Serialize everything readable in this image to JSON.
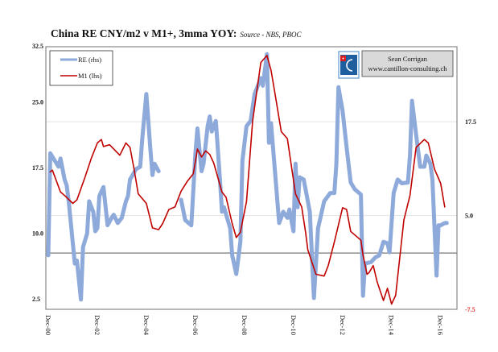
{
  "chart_data": {
    "type": "line",
    "title": "China RE CNY/m2 v M1+, 3mma YOY:",
    "subtitle": "Source - NBS, PBOC",
    "xlabel": "",
    "x_ticks": [
      "Dec-00",
      "Dec-02",
      "Dec-04",
      "Dec-06",
      "Dec-08",
      "Dec-10",
      "Dec-12",
      "Dec-14",
      "Dec-16"
    ],
    "y_left": {
      "ticks": [
        "32.5",
        "25.0",
        "17.5",
        "10.0",
        "2.5"
      ],
      "range": [
        2.5,
        32.5
      ]
    },
    "y_right": {
      "ticks": [
        "17.5",
        "5.0",
        "-7.5"
      ],
      "range": [
        -7.5,
        27.5
      ],
      "zero_line": true
    },
    "grid": "horizontal, right axis",
    "legend": {
      "placement": "top-left",
      "entries": [
        "RE (rhs)",
        "M1 (lhs)"
      ]
    },
    "annotation": {
      "name": "Sean Corrigan",
      "site": "www.cantillon-consulting.ch"
    },
    "series": [
      {
        "name": "RE (rhs)",
        "axis": "right",
        "color": "#8eaadb",
        "points": [
          [
            "2000-12",
            -0.3
          ],
          [
            "2001-01",
            13.3
          ],
          [
            "2001-05",
            11.5
          ],
          [
            "2001-06",
            12.6
          ],
          [
            "2001-08",
            9.8
          ],
          [
            "2001-09",
            9.0
          ],
          [
            "2001-10",
            6.9
          ],
          [
            "2002-01",
            -1.4
          ],
          [
            "2002-02",
            -1.0
          ],
          [
            "2002-04",
            -6.2
          ],
          [
            "2002-05",
            0.8
          ],
          [
            "2002-07",
            2.6
          ],
          [
            "2002-08",
            6.9
          ],
          [
            "2002-10",
            5.5
          ],
          [
            "2002-11",
            2.9
          ],
          [
            "2002-12",
            3.3
          ],
          [
            "2003-01",
            7.6
          ],
          [
            "2003-03",
            8.8
          ],
          [
            "2003-05",
            3.7
          ],
          [
            "2003-07",
            4.7
          ],
          [
            "2003-08",
            5.1
          ],
          [
            "2003-10",
            4.0
          ],
          [
            "2003-12",
            4.7
          ],
          [
            "2004-02",
            6.9
          ],
          [
            "2004-03",
            7.6
          ],
          [
            "2004-04",
            9.8
          ],
          [
            "2004-07",
            11.2
          ],
          [
            "2004-09",
            11.5
          ],
          [
            "2004-10",
            15.2
          ],
          [
            "2004-12",
            21.2
          ],
          [
            "2005-02",
            13.7
          ],
          [
            "2005-03",
            10.4
          ],
          [
            "2005-04",
            11.9
          ],
          [
            "2005-06",
            10.9
          ],
          [
            "2005-07",
            null
          ],
          [
            "2006-05",
            7.1
          ],
          [
            "2006-07",
            4.4
          ],
          [
            "2006-10",
            3.7
          ],
          [
            "2006-12",
            13.3
          ],
          [
            "2007-01",
            16.6
          ],
          [
            "2007-03",
            10.9
          ],
          [
            "2007-04",
            11.9
          ],
          [
            "2007-06",
            16.9
          ],
          [
            "2007-07",
            18.2
          ],
          [
            "2007-08",
            16.2
          ],
          [
            "2007-10",
            17.6
          ],
          [
            "2007-12",
            9.8
          ],
          [
            "2008-01",
            5.5
          ],
          [
            "2008-02",
            6.1
          ],
          [
            "2008-05",
            3.3
          ],
          [
            "2008-06",
            -0.3
          ],
          [
            "2008-08",
            -2.8
          ],
          [
            "2008-10",
            1.5
          ],
          [
            "2008-11",
            12.3
          ],
          [
            "2009-01",
            16.9
          ],
          [
            "2009-03",
            17.6
          ],
          [
            "2009-05",
            21.2
          ],
          [
            "2009-08",
            23.3
          ],
          [
            "2009-09",
            22.3
          ],
          [
            "2009-11",
            26.5
          ],
          [
            "2009-12",
            14.7
          ],
          [
            "2010-01",
            17.3
          ],
          [
            "2010-05",
            4.0
          ],
          [
            "2010-07",
            5.5
          ],
          [
            "2010-09",
            4.7
          ],
          [
            "2010-10",
            5.8
          ],
          [
            "2010-12",
            2.9
          ],
          [
            "2011-01",
            11.9
          ],
          [
            "2011-02",
            6.1
          ],
          [
            "2011-03",
            10.1
          ],
          [
            "2011-05",
            9.8
          ],
          [
            "2011-08",
            5.5
          ],
          [
            "2011-10",
            -6.0
          ],
          [
            "2011-12",
            3.3
          ],
          [
            "2012-03",
            6.9
          ],
          [
            "2012-06",
            8.0
          ],
          [
            "2012-08",
            8.0
          ],
          [
            "2012-09",
            11.9
          ],
          [
            "2012-10",
            22.1
          ],
          [
            "2012-12",
            19.0
          ],
          [
            "2013-02",
            14.1
          ],
          [
            "2013-04",
            9.4
          ],
          [
            "2013-06",
            8.5
          ],
          [
            "2013-09",
            7.8
          ],
          [
            "2013-10",
            -5.7
          ],
          [
            "2013-11",
            -1.4
          ],
          [
            "2014-02",
            -1.2
          ],
          [
            "2014-04",
            -0.6
          ],
          [
            "2014-06",
            -0.3
          ],
          [
            "2014-08",
            1.5
          ],
          [
            "2014-10",
            1.3
          ],
          [
            "2014-11",
            0.1
          ],
          [
            "2015-01",
            8.0
          ],
          [
            "2015-03",
            9.8
          ],
          [
            "2015-05",
            9.3
          ],
          [
            "2015-08",
            9.4
          ],
          [
            "2015-09",
            13.0
          ],
          [
            "2015-10",
            20.3
          ],
          [
            "2015-12",
            15.8
          ],
          [
            "2016-02",
            11.5
          ],
          [
            "2016-04",
            11.5
          ],
          [
            "2016-05",
            13.0
          ],
          [
            "2016-07",
            11.9
          ],
          [
            "2016-08",
            9.8
          ],
          [
            "2016-10",
            -3.0
          ],
          [
            "2016-11",
            3.7
          ],
          [
            "2016-12",
            3.7
          ],
          [
            "2017-02",
            4.0
          ],
          [
            "2017-03",
            4.0
          ]
        ]
      },
      {
        "name": "M1 (lhs)",
        "axis": "left",
        "color": "#c00000",
        "points": [
          [
            "2001-01",
            18.2
          ],
          [
            "2001-02",
            18.4
          ],
          [
            "2001-06",
            15.9
          ],
          [
            "2001-08",
            15.5
          ],
          [
            "2001-12",
            14.6
          ],
          [
            "2002-02",
            15.0
          ],
          [
            "2002-06",
            17.6
          ],
          [
            "2002-09",
            19.7
          ],
          [
            "2002-12",
            21.5
          ],
          [
            "2003-02",
            21.9
          ],
          [
            "2003-03",
            21.1
          ],
          [
            "2003-06",
            21.3
          ],
          [
            "2003-11",
            20.1
          ],
          [
            "2004-02",
            21.5
          ],
          [
            "2004-04",
            21.0
          ],
          [
            "2004-06",
            18.5
          ],
          [
            "2004-08",
            15.7
          ],
          [
            "2004-12",
            14.6
          ],
          [
            "2005-03",
            11.8
          ],
          [
            "2005-06",
            11.6
          ],
          [
            "2005-08",
            12.3
          ],
          [
            "2005-11",
            13.9
          ],
          [
            "2006-02",
            14.2
          ],
          [
            "2006-05",
            16.0
          ],
          [
            "2006-08",
            17.1
          ],
          [
            "2006-11",
            18.0
          ],
          [
            "2007-01",
            20.8
          ],
          [
            "2007-03",
            19.9
          ],
          [
            "2007-05",
            20.6
          ],
          [
            "2007-07",
            20.2
          ],
          [
            "2007-09",
            19.2
          ],
          [
            "2008-01",
            15.9
          ],
          [
            "2008-03",
            15.3
          ],
          [
            "2008-06",
            12.3
          ],
          [
            "2008-08",
            10.7
          ],
          [
            "2008-10",
            11.3
          ],
          [
            "2009-01",
            14.8
          ],
          [
            "2009-04",
            24.0
          ],
          [
            "2009-08",
            30.7
          ],
          [
            "2009-11",
            31.5
          ],
          [
            "2010-01",
            29.8
          ],
          [
            "2010-03",
            27.1
          ],
          [
            "2010-06",
            22.8
          ],
          [
            "2010-09",
            22.0
          ],
          [
            "2011-01",
            15.7
          ],
          [
            "2011-04",
            14.2
          ],
          [
            "2011-06",
            11.2
          ],
          [
            "2011-07",
            9.3
          ],
          [
            "2011-11",
            6.5
          ],
          [
            "2012-03",
            6.3
          ],
          [
            "2012-05",
            7.5
          ],
          [
            "2012-07",
            9.3
          ],
          [
            "2012-08",
            10.2
          ],
          [
            "2012-12",
            14.1
          ],
          [
            "2013-02",
            13.9
          ],
          [
            "2013-04",
            11.4
          ],
          [
            "2013-09",
            10.4
          ],
          [
            "2013-10",
            8.7
          ],
          [
            "2013-12",
            6.5
          ],
          [
            "2014-01",
            6.7
          ],
          [
            "2014-03",
            7.5
          ],
          [
            "2014-05",
            5.6
          ],
          [
            "2014-08",
            3.5
          ],
          [
            "2014-10",
            4.9
          ],
          [
            "2014-12",
            3.1
          ],
          [
            "2015-02",
            4.1
          ],
          [
            "2015-06",
            12.7
          ],
          [
            "2015-09",
            15.5
          ],
          [
            "2015-12",
            21.0
          ],
          [
            "2016-04",
            21.9
          ],
          [
            "2016-06",
            21.5
          ],
          [
            "2016-09",
            18.5
          ],
          [
            "2016-12",
            16.9
          ],
          [
            "2017-02",
            14.2
          ]
        ]
      }
    ]
  }
}
